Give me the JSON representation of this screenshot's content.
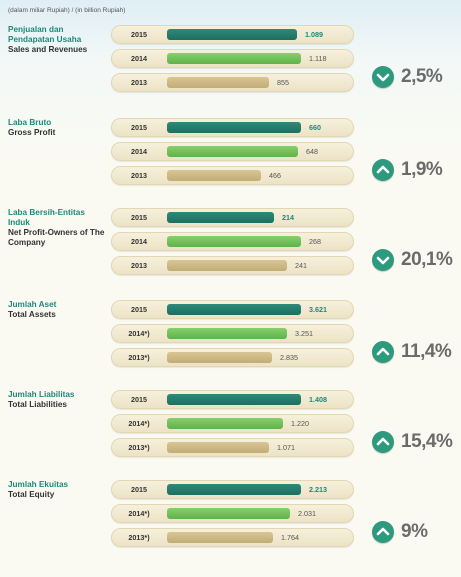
{
  "unit_note": "(dalam miliar Rupiah) / (in billion Rupiah)",
  "colors": {
    "y2015": "#1e6e60",
    "y2014": "#6cc152",
    "y2013": "#cbb887",
    "badge": "#2d9a7e",
    "label_id": "#1a8a79"
  },
  "chart_data": {
    "type": "bar",
    "orientation": "horizontal",
    "groups": [
      {
        "label_id": "Penjualan dan Pendapatan Usaha",
        "label_en": "Sales and Revenues",
        "change": "2,5%",
        "direction": "down",
        "rows": [
          {
            "year": "2015",
            "value": 1089,
            "display": "1.089"
          },
          {
            "year": "2014",
            "value": 1118,
            "display": "1.118"
          },
          {
            "year": "2013",
            "value": 855,
            "display": "855"
          }
        ]
      },
      {
        "label_id": "Laba Bruto",
        "label_en": "Gross Profit",
        "change": "1,9%",
        "direction": "up",
        "rows": [
          {
            "year": "2015",
            "value": 660,
            "display": "660"
          },
          {
            "year": "2014",
            "value": 648,
            "display": "648"
          },
          {
            "year": "2013",
            "value": 466,
            "display": "466"
          }
        ]
      },
      {
        "label_id": "Laba Bersih-Entitas Induk",
        "label_en": "Net Profit-Owners of The Company",
        "change": "20,1%",
        "direction": "down",
        "rows": [
          {
            "year": "2015",
            "value": 214,
            "display": "214"
          },
          {
            "year": "2014",
            "value": 268,
            "display": "268"
          },
          {
            "year": "2013",
            "value": 241,
            "display": "241"
          }
        ]
      },
      {
        "label_id": "Jumlah Aset",
        "label_en": "Total Assets",
        "change": "11,4%",
        "direction": "up",
        "rows": [
          {
            "year": "2015",
            "value": 3621,
            "display": "3.621"
          },
          {
            "year": "2014*)",
            "value": 3251,
            "display": "3.251"
          },
          {
            "year": "2013*)",
            "value": 2835,
            "display": "2.835"
          }
        ]
      },
      {
        "label_id": "Jumlah Liabilitas",
        "label_en": "Total Liabilities",
        "change": "15,4%",
        "direction": "up",
        "rows": [
          {
            "year": "2015",
            "value": 1408,
            "display": "1.408"
          },
          {
            "year": "2014*)",
            "value": 1220,
            "display": "1.220"
          },
          {
            "year": "2013*)",
            "value": 1071,
            "display": "1.071"
          }
        ]
      },
      {
        "label_id": "Jumlah Ekuitas",
        "label_en": "Total Equity",
        "change": "9%",
        "direction": "up",
        "rows": [
          {
            "year": "2015",
            "value": 2213,
            "display": "2.213"
          },
          {
            "year": "2014*)",
            "value": 2031,
            "display": "2.031"
          },
          {
            "year": "2013*)",
            "value": 1764,
            "display": "1.764"
          }
        ]
      }
    ]
  }
}
